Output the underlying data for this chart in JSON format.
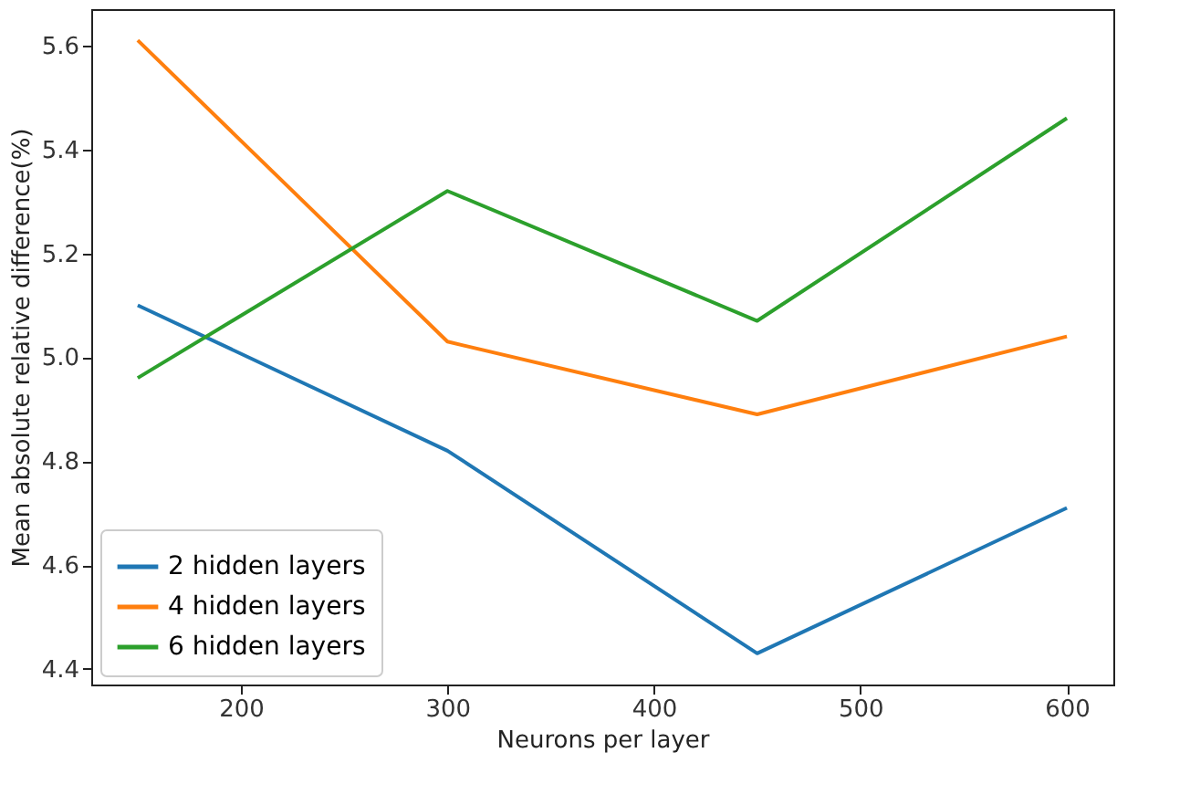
{
  "chart_data": {
    "type": "line",
    "xlabel": "Neurons per layer",
    "ylabel": "Mean absolute relative difference(%)",
    "x": [
      150,
      300,
      450,
      600
    ],
    "series": [
      {
        "name": "2 hidden layers",
        "color": "#1f77b4",
        "values": [
          5.1,
          4.82,
          4.43,
          4.71
        ]
      },
      {
        "name": "4 hidden layers",
        "color": "#ff7f0e",
        "values": [
          5.61,
          5.03,
          4.89,
          5.04
        ]
      },
      {
        "name": "6 hidden layers",
        "color": "#2ca02c",
        "values": [
          4.96,
          5.32,
          5.07,
          5.46
        ]
      }
    ],
    "xlim": [
      127.5,
      622.5
    ],
    "xticks": [
      200,
      300,
      400,
      500,
      600
    ],
    "ylim": [
      4.37,
      5.67
    ],
    "yticks": [
      {
        "value": 4.4,
        "label": "4.4"
      },
      {
        "value": 4.6,
        "label": "4.6"
      },
      {
        "value": 4.8,
        "label": "4.8"
      },
      {
        "value": 5.0,
        "label": "5.0"
      },
      {
        "value": 5.2,
        "label": "5.2"
      },
      {
        "value": 5.4,
        "label": "5.4"
      },
      {
        "value": 5.6,
        "label": "5.6"
      }
    ],
    "legend": "bottom left",
    "grid": false,
    "marker": "none",
    "line_style": "solid"
  }
}
